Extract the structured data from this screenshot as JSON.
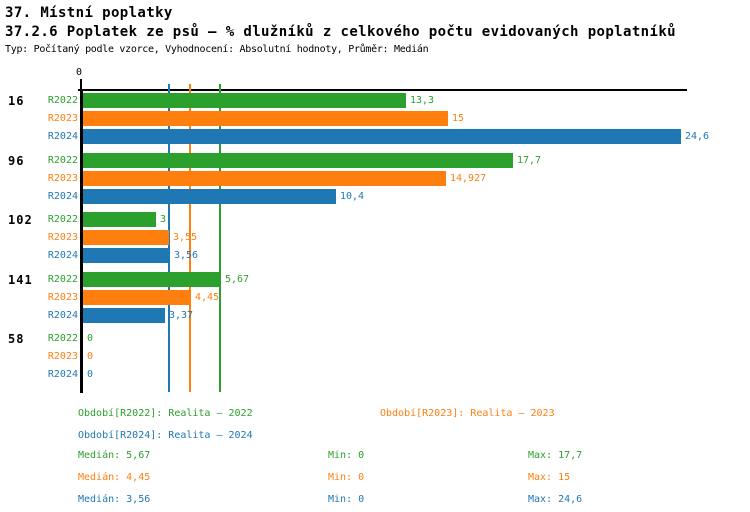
{
  "header": {
    "title": "37. Místní poplatky",
    "subtitle": "37.2.6 Poplatek ze psů – % dlužníků z celkového počtu evidovaných poplatníků",
    "meta": "Typ: Počítaný podle vzorce, Vyhodnocení: Absolutní hodnoty, Průměr: Medián"
  },
  "chart_data": {
    "type": "bar",
    "orientation": "horizontal",
    "title": "",
    "xlabel": "",
    "ylabel": "",
    "xlim": [
      0,
      24.6
    ],
    "grid": false,
    "axis_origin_label": "0",
    "categories": [
      "16",
      "96",
      "102",
      "141",
      "58"
    ],
    "series": [
      {
        "name": "R2022",
        "color": "#2ca02c",
        "values": [
          13.3,
          17.7,
          3,
          5.67,
          0
        ],
        "labels": [
          "13,3",
          "17,7",
          "3",
          "5,67",
          "0"
        ]
      },
      {
        "name": "R2023",
        "color": "#ff7f0e",
        "values": [
          15,
          14.927,
          3.55,
          4.45,
          0
        ],
        "labels": [
          "15",
          "14,927",
          "3,55",
          "4,45",
          "0"
        ]
      },
      {
        "name": "R2024",
        "color": "#1f77b4",
        "values": [
          24.6,
          10.4,
          3.56,
          3.37,
          0
        ],
        "labels": [
          "24,6",
          "10,4",
          "3,56",
          "3,37",
          "0"
        ]
      }
    ],
    "median_lines": [
      {
        "series": "R2024",
        "value": 3.56,
        "color": "#1f77b4"
      },
      {
        "series": "R2023",
        "value": 4.45,
        "color": "#ff7f0e"
      },
      {
        "series": "R2022",
        "value": 5.67,
        "color": "#2ca02c"
      }
    ],
    "legend_position": "bottom"
  },
  "legend": [
    {
      "label": "Období[R2022]: Realita – 2022",
      "color": "#2ca02c"
    },
    {
      "label": "Období[R2023]: Realita – 2023",
      "color": "#ff7f0e"
    },
    {
      "label": "Období[R2024]: Realita – 2024",
      "color": "#1f77b4"
    }
  ],
  "stats": [
    {
      "median": "Medián: 5,67",
      "min": "Min: 0",
      "max": "Max: 17,7",
      "color": "#2ca02c"
    },
    {
      "median": "Medián: 4,45",
      "min": "Min: 0",
      "max": "Max: 15",
      "color": "#ff7f0e"
    },
    {
      "median": "Medián: 3,56",
      "min": "Min: 0",
      "max": "Max: 24,6",
      "color": "#1f77b4"
    }
  ]
}
